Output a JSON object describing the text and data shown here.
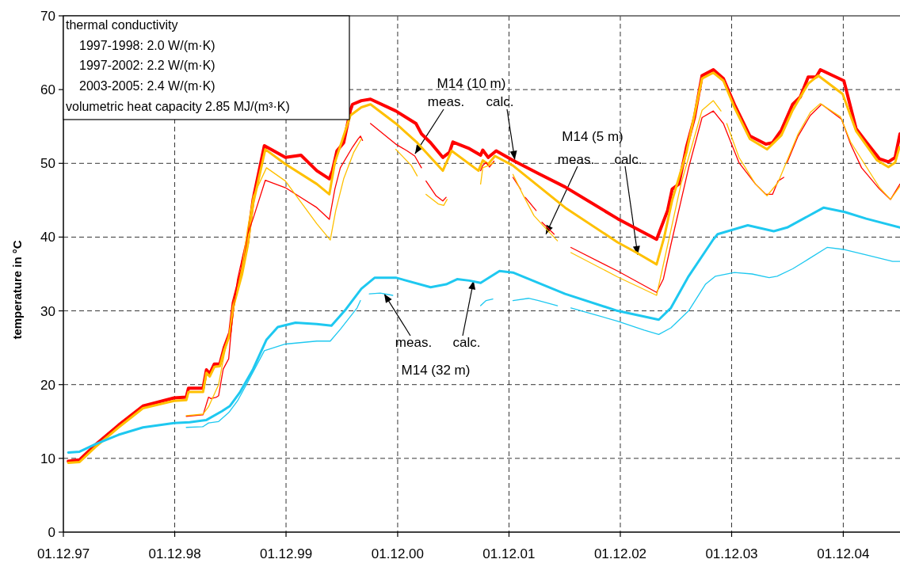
{
  "chart_data": {
    "type": "line",
    "ylabel": "temperature in °C",
    "xlim": [
      "1997-12-01",
      "2005-06-05"
    ],
    "xticks": [
      {
        "value": "1997-12-01",
        "label": "01.12.97"
      },
      {
        "value": "1998-12-01",
        "label": "01.12.98"
      },
      {
        "value": "1999-12-01",
        "label": "01.12.99"
      },
      {
        "value": "2000-12-01",
        "label": "01.12.00"
      },
      {
        "value": "2001-12-01",
        "label": "01.12.01"
      },
      {
        "value": "2002-12-01",
        "label": "01.12.02"
      },
      {
        "value": "2003-12-01",
        "label": "01.12.03"
      },
      {
        "value": "2004-12-01",
        "label": "01.12.04"
      }
    ],
    "ylim": [
      0,
      70
    ],
    "yticks": [
      0,
      10,
      20,
      30,
      40,
      50,
      60,
      70
    ],
    "grid": true,
    "series": [
      {
        "color": "#ff0000",
        "x": [
          "1997-12-17",
          "1998-01-23",
          "1998-03-15",
          "1998-05-31",
          "1998-08-19",
          "1998-11-29",
          "1999-01-08",
          "1999-01-15",
          "1999-03-04",
          "1999-03-15",
          "1999-03-26",
          "1999-04-10",
          "1999-04-28",
          "1999-05-12",
          "1999-05-31",
          "1999-06-11",
          "1999-07-10",
          "1999-07-13",
          "1999-07-28",
          "1999-08-15",
          "1999-09-21",
          "1999-11-29",
          "2000-01-19",
          "2000-03-11",
          "2000-04-21",
          "2000-05-01",
          "2000-05-16",
          "2000-06-07",
          "2000-06-29",
          "2000-07-06",
          "2000-08-04",
          "2000-09-03",
          "2000-11-25",
          "2001-01-30",
          "2001-02-17",
          "2001-03-19",
          "2001-04-28",
          "2001-05-20",
          "2001-05-31",
          "2001-07-24",
          "2001-08-30",
          "2001-09-06",
          "2001-09-24",
          "2001-10-20",
          "2001-12-14",
          "2002-03-08",
          "2002-06-03",
          "2002-11-22",
          "2003-03-30",
          "2003-05-05",
          "2003-05-20",
          "2003-06-11",
          "2003-07-06",
          "2003-08-01",
          "2003-08-26",
          "2003-10-02",
          "2003-11-04",
          "2003-12-10",
          "2004-01-30",
          "2004-03-22",
          "2004-04-13",
          "2004-05-12",
          "2004-06-18",
          "2004-07-13",
          "2004-08-08",
          "2004-09-03",
          "2004-09-17",
          "2004-12-03",
          "2005-01-12",
          "2005-02-14",
          "2005-03-30",
          "2005-04-28",
          "2005-05-20",
          "2005-06-05"
        ],
        "values": [
          9.6,
          9.8,
          11.8,
          14.5,
          17.1,
          18.2,
          18.3,
          19.5,
          19.5,
          22.0,
          21.5,
          22.8,
          22.8,
          25.0,
          27.1,
          31.1,
          35.7,
          36.8,
          39.3,
          45.1,
          52.4,
          50.8,
          51.1,
          49.0,
          47.9,
          49.0,
          51.7,
          52.8,
          57.2,
          58.0,
          58.5,
          58.7,
          57.1,
          55.4,
          54.0,
          52.8,
          50.8,
          51.5,
          52.9,
          52.0,
          51.1,
          51.8,
          50.8,
          51.7,
          50.4,
          48.6,
          46.8,
          42.5,
          39.7,
          43.6,
          46.5,
          47.2,
          52.2,
          56.2,
          61.9,
          62.7,
          61.5,
          58.0,
          53.7,
          52.6,
          52.8,
          54.5,
          58.0,
          59.0,
          61.7,
          61.7,
          62.7,
          61.2,
          54.7,
          52.9,
          50.6,
          50.2,
          50.8,
          54.0
        ]
      },
      {
        "color": "#ffc000",
        "x": [
          "1997-12-17",
          "1998-01-23",
          "1998-03-15",
          "1998-05-31",
          "1998-08-19",
          "1998-11-29",
          "1999-01-08",
          "1999-01-15",
          "1999-03-04",
          "1999-03-15",
          "1999-03-26",
          "1999-04-10",
          "1999-04-28",
          "1999-05-12",
          "1999-05-31",
          "1999-06-11",
          "1999-07-10",
          "1999-07-28",
          "1999-08-15",
          "1999-09-24",
          "1999-11-29",
          "2000-03-11",
          "2000-04-21",
          "2000-05-09",
          "2000-06-29",
          "2000-08-04",
          "2000-09-03",
          "2000-11-25",
          "2001-02-03",
          "2001-04-28",
          "2001-05-27",
          "2001-08-23",
          "2001-09-06",
          "2001-09-24",
          "2001-10-16",
          "2001-12-14",
          "2002-06-03",
          "2002-11-22",
          "2003-01-23",
          "2003-03-30",
          "2003-04-24",
          "2003-05-20",
          "2003-07-06",
          "2003-08-26",
          "2003-10-02",
          "2003-11-04",
          "2003-12-10",
          "2004-01-30",
          "2004-03-26",
          "2004-05-12",
          "2004-06-18",
          "2004-08-08",
          "2004-09-10",
          "2004-11-29",
          "2005-01-12",
          "2005-03-22",
          "2005-04-28",
          "2005-05-20",
          "2005-06-03"
        ],
        "values": [
          9.4,
          9.5,
          11.5,
          14.2,
          16.8,
          17.8,
          17.9,
          19.0,
          19.0,
          21.6,
          21.1,
          22.4,
          22.5,
          24.6,
          26.8,
          30.6,
          35.0,
          38.8,
          44.5,
          51.9,
          49.9,
          47.2,
          45.8,
          50.1,
          56.5,
          57.6,
          58.0,
          55.4,
          52.8,
          49.0,
          51.7,
          49.0,
          50.4,
          49.9,
          51.0,
          49.7,
          44.0,
          39.3,
          37.9,
          36.3,
          40.0,
          45.0,
          51.5,
          61.5,
          62.3,
          61.2,
          57.6,
          53.3,
          51.9,
          53.8,
          57.2,
          60.8,
          61.9,
          59.4,
          54.4,
          50.4,
          49.5,
          50.1,
          52.2
        ]
      },
      {
        "color": "#ff0000",
        "x": [
          "1999-01-08",
          "1999-03-04",
          "1999-03-22",
          "1999-03-30",
          "1999-04-17",
          "1999-04-24",
          "1999-05-09",
          "1999-05-27",
          "1999-06-07",
          "1999-06-25",
          "1999-07-28",
          "1999-08-15",
          "1999-09-24",
          "1999-11-29",
          "2000-03-11",
          "2000-04-21",
          "2000-05-09",
          "2000-05-27",
          "2000-07-06",
          "2000-07-24",
          "2000-08-01",
          "2000-08-08",
          "2000-08-19",
          "2000-09-03",
          "2000-11-25",
          "2001-01-01",
          "2001-01-26",
          "2001-02-17",
          "2001-02-25",
          "2001-03-04",
          "2001-04-06",
          "2001-04-28",
          "2001-05-09",
          "2001-07-02",
          "2001-08-30",
          "2001-09-06",
          "2001-09-17",
          "2001-09-28",
          "2001-10-13",
          "2001-11-11",
          "2001-12-14",
          "2002-01-08",
          "2002-01-15",
          "2002-01-23",
          "2002-02-28",
          "2002-03-08",
          "2002-03-19",
          "2002-04-28",
          "2002-05-27",
          "2002-06-22",
          "2002-11-22",
          "2003-03-30",
          "2003-04-21",
          "2003-05-16",
          "2003-07-13",
          "2003-08-26",
          "2003-10-02",
          "2003-11-04",
          "2003-12-25",
          "2004-02-17",
          "2004-03-22",
          "2004-04-13",
          "2004-05-01",
          "2004-05-20",
          "2004-05-23",
          "2004-05-31",
          "2004-07-06",
          "2004-08-15",
          "2004-09-21",
          "2004-11-25",
          "2004-12-25",
          "2005-01-30",
          "2005-03-30",
          "2005-05-05",
          "2005-06-05"
        ],
        "values": [
          15.7,
          15.9,
          18.3,
          18.1,
          18.3,
          18.5,
          22.1,
          23.5,
          28.6,
          34.3,
          40.4,
          42.5,
          47.7,
          46.7,
          44.0,
          42.4,
          46.5,
          49.4,
          52.2,
          53.3,
          53.7,
          53.1,
          null,
          55.4,
          52.6,
          51.7,
          51.0,
          49.4,
          null,
          47.6,
          45.6,
          44.9,
          45.4,
          null,
          49.0,
          49.7,
          50.1,
          49.5,
          50.3,
          null,
          48.1,
          46.5,
          null,
          45.4,
          43.6,
          null,
          42.0,
          40.4,
          null,
          38.6,
          35.4,
          32.5,
          34.3,
          39.0,
          49.4,
          56.2,
          57.1,
          55.4,
          50.1,
          47.2,
          45.8,
          45.8,
          47.6,
          48.1,
          null,
          50.1,
          53.7,
          56.5,
          58.0,
          56.0,
          52.6,
          49.4,
          46.5,
          45.1,
          47.2
        ]
      },
      {
        "color": "#ffc000",
        "x": [
          "1999-01-08",
          "1999-03-04",
          "1999-03-22",
          "1999-04-24",
          "1999-05-12",
          "1999-05-31",
          "1999-06-11",
          "1999-07-10",
          "1999-07-28",
          "1999-08-15",
          "1999-09-28",
          "1999-11-29",
          "2000-03-11",
          "2000-04-24",
          "2000-05-12",
          "2000-06-07",
          "2000-07-10",
          "2000-07-28",
          "2000-08-04",
          "2000-10-02",
          "2000-11-25",
          "2001-01-15",
          "2001-02-03",
          "2001-02-17",
          "2001-03-04",
          "2001-04-13",
          "2001-05-01",
          "2001-05-12",
          "2001-07-02",
          "2001-08-30",
          "2001-09-06",
          "2001-09-24",
          "2001-10-13",
          "2001-11-11",
          "2001-12-14",
          "2002-01-15",
          "2002-02-21",
          "2002-04-02",
          "2002-05-09",
          "2002-05-27",
          "2002-06-22",
          "2002-11-22",
          "2003-03-30",
          "2003-06-18",
          "2003-08-26",
          "2003-10-02",
          "2003-10-27",
          "2003-11-04",
          "2003-11-15",
          "2003-12-25",
          "2004-02-17",
          "2004-03-26",
          "2004-05-01",
          "2004-07-06",
          "2004-08-15",
          "2004-09-17",
          "2004-11-22",
          "2004-12-25",
          "2005-03-30",
          "2005-05-05",
          "2005-06-05"
        ],
        "values": [
          15.8,
          16.0,
          17.0,
          20.0,
          24.0,
          27.5,
          30.0,
          36.0,
          41.1,
          45.5,
          49.4,
          47.6,
          41.8,
          39.6,
          43.6,
          47.9,
          51.5,
          52.8,
          53.3,
          null,
          51.9,
          49.7,
          48.3,
          null,
          45.8,
          44.5,
          44.3,
          45.1,
          null,
          47.2,
          49.4,
          49.7,
          50.1,
          null,
          48.5,
          45.8,
          42.9,
          41.1,
          39.5,
          null,
          37.9,
          34.6,
          32.1,
          47.2,
          57.2,
          58.5,
          57.1,
          null,
          55.4,
          50.8,
          47.2,
          45.6,
          47.4,
          54.0,
          56.9,
          58.1,
          56.3,
          52.9,
          46.7,
          45.1,
          46.9
        ]
      },
      {
        "color": "#1ec8f0",
        "x": [
          "1997-12-17",
          "1998-01-23",
          "1998-03-15",
          "1998-05-31",
          "1998-08-19",
          "1998-11-29",
          "1999-01-19",
          "1999-03-15",
          "1999-05-05",
          "1999-05-31",
          "1999-07-02",
          "1999-08-15",
          "1999-09-28",
          "1999-11-04",
          "2000-01-01",
          "2000-03-11",
          "2000-04-28",
          "2000-06-14",
          "2000-08-04",
          "2000-09-17",
          "2000-11-25",
          "2001-03-19",
          "2001-05-09",
          "2001-06-14",
          "2001-07-24",
          "2001-08-30",
          "2001-10-31",
          "2001-12-14",
          "2002-06-03",
          "2002-11-22",
          "2003-04-06",
          "2003-05-16",
          "2003-07-13",
          "2003-10-02",
          "2003-10-16",
          "2004-01-23",
          "2004-04-17",
          "2004-05-31",
          "2004-09-28",
          "2004-12-06",
          "2005-02-14",
          "2005-06-05"
        ],
        "values": [
          10.8,
          10.9,
          11.9,
          13.2,
          14.2,
          14.8,
          14.9,
          15.2,
          16.4,
          17.1,
          18.9,
          22.1,
          26.1,
          27.8,
          28.4,
          28.2,
          28.0,
          30.2,
          33.0,
          34.5,
          34.5,
          33.2,
          33.6,
          34.3,
          34.1,
          33.8,
          35.4,
          35.2,
          32.3,
          30.0,
          28.8,
          30.4,
          34.7,
          39.7,
          40.4,
          41.6,
          40.8,
          41.3,
          44.0,
          43.4,
          42.5,
          41.3
        ]
      },
      {
        "color": "#1ec8f0",
        "x": [
          "1999-01-08",
          "1999-03-04",
          "1999-03-22",
          "1999-04-24",
          "1999-05-27",
          "1999-06-25",
          "1999-07-28",
          "1999-09-21",
          "1999-11-29",
          "2000-03-11",
          "2000-04-24",
          "2000-05-27",
          "2000-07-21",
          "2000-08-01",
          "2000-08-15",
          "2000-08-30",
          "2000-10-05",
          "2000-11-15",
          "2001-03-15",
          "2001-08-30",
          "2001-09-17",
          "2001-10-09",
          "2001-11-07",
          "2001-12-14",
          "2002-02-03",
          "2002-03-08",
          "2002-05-09",
          "2002-05-27",
          "2002-06-22",
          "2002-08-30",
          "2002-11-22",
          "2003-02-17",
          "2003-04-06",
          "2003-05-16",
          "2003-07-13",
          "2003-09-06",
          "2003-10-09",
          "2003-12-10",
          "2004-02-06",
          "2004-04-02",
          "2004-04-28",
          "2004-06-18",
          "2004-08-08",
          "2004-10-09",
          "2004-12-06",
          "2005-02-14",
          "2005-05-12",
          "2005-06-05"
        ],
        "values": [
          14.2,
          14.3,
          14.8,
          15.0,
          16.2,
          17.8,
          20.3,
          24.6,
          25.5,
          25.9,
          25.9,
          27.5,
          30.4,
          31.4,
          null,
          32.3,
          32.4,
          32.1,
          null,
          30.7,
          31.4,
          31.6,
          null,
          31.4,
          31.7,
          31.4,
          30.7,
          null,
          30.4,
          29.6,
          28.6,
          27.4,
          26.8,
          27.7,
          30.0,
          33.6,
          34.7,
          35.2,
          35.0,
          34.5,
          34.7,
          35.7,
          37.0,
          38.6,
          38.3,
          37.6,
          36.7,
          36.7
        ]
      }
    ],
    "annotations": [
      "thermal conductivity",
      "1997-1998: 2.0 W/(m·K)",
      "1997-2002: 2.2 W/(m·K)",
      "2003-2005: 2.4 W/(m·K)",
      "volumetric heat capacity 2.85 MJ/(m³·K)",
      "M14 (10 m)",
      {
        "text": "meas.",
        "x": "2001-01-27",
        "y": 51.3
      },
      {
        "text": "calc.",
        "x": "2001-12-20",
        "y": 50.5
      },
      "M14 (5 m)",
      {
        "text": "meas.",
        "x": "2002-04-01",
        "y": 40.4
      },
      {
        "text": "calc.",
        "x": "2003-01-27",
        "y": 37.6
      },
      {
        "text": "meas.",
        "x": "2000-10-18",
        "y": 32.3
      },
      {
        "text": "calc.",
        "x": "2001-08-07",
        "y": 34.1
      },
      "M14 (32 m)"
    ]
  }
}
